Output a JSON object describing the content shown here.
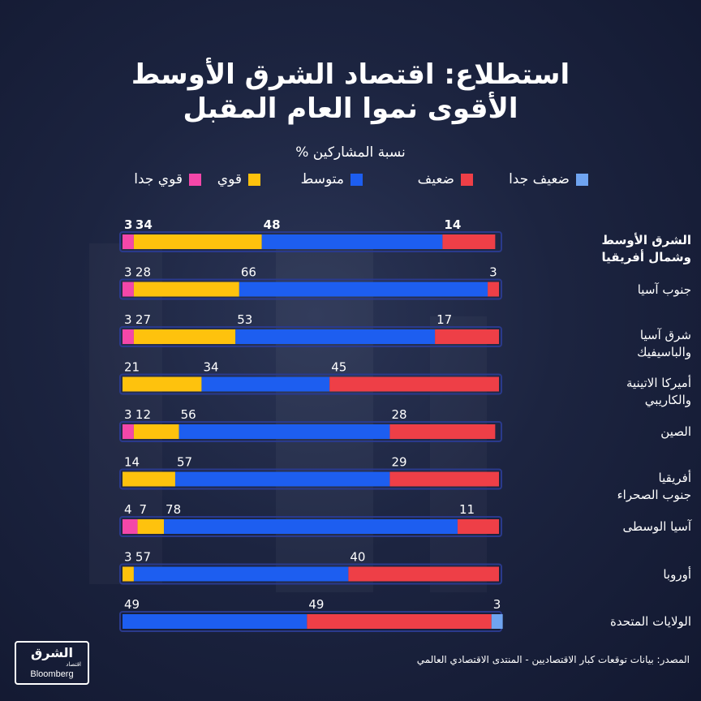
{
  "title_line_1": "استطلاع: اقتصاد الشرق الأوسط",
  "title_line_2": "الأقوى نموا العام المقبل",
  "subtitle": "نسبة المشاركين %",
  "source": "المصدر: بيانات توقعات كبار الاقتصاديين - المنتدى الاقتصادي العالمي",
  "logo": {
    "arabic": "الشرق",
    "sub": "اقتصاد",
    "latin": "Bloomberg"
  },
  "colors": {
    "very_weak": "#6fa4f0",
    "weak": "#ee3f47",
    "medium": "#1d5ef0",
    "strong": "#fec20d",
    "very_strong": "#f447a9",
    "bar_outline": "#2a3a8c"
  },
  "chart_data": {
    "type": "bar",
    "orientation": "horizontal",
    "stacked": true,
    "title": "استطلاع: اقتصاد الشرق الأوسط الأقوى نموا العام المقبل",
    "subtitle": "نسبة المشاركين %",
    "legend_position": "top",
    "xlim": [
      0,
      100
    ],
    "categories": [
      [
        "الشرق الأوسط",
        "وشمال أفريقيا"
      ],
      [
        "جنوب آسيا"
      ],
      [
        "شرق آسيا",
        "والباسيفيك"
      ],
      [
        "أميركا الاتينية",
        "والكاريبي"
      ],
      [
        "الصين"
      ],
      [
        "أفريقيا",
        "جنوب الصحراء"
      ],
      [
        "آسيا الوسطى"
      ],
      [
        "أوروبا"
      ],
      [
        "الولايات المتحدة"
      ]
    ],
    "highlight_category": 0,
    "series": [
      {
        "key": "very_strong",
        "name": "قوي جدا",
        "values": [
          3,
          3,
          3,
          0,
          3,
          0,
          4,
          0,
          0
        ]
      },
      {
        "key": "strong",
        "name": "قوي",
        "values": [
          34,
          28,
          27,
          21,
          12,
          14,
          7,
          3,
          0
        ]
      },
      {
        "key": "medium",
        "name": "متوسط",
        "values": [
          48,
          66,
          53,
          34,
          56,
          57,
          78,
          57,
          49
        ]
      },
      {
        "key": "weak",
        "name": "ضعيف",
        "values": [
          14,
          3,
          17,
          45,
          28,
          29,
          11,
          40,
          49
        ]
      },
      {
        "key": "very_weak",
        "name": "ضعيف جدا",
        "values": [
          0,
          0,
          0,
          0,
          0,
          0,
          0,
          0,
          3
        ]
      }
    ]
  }
}
